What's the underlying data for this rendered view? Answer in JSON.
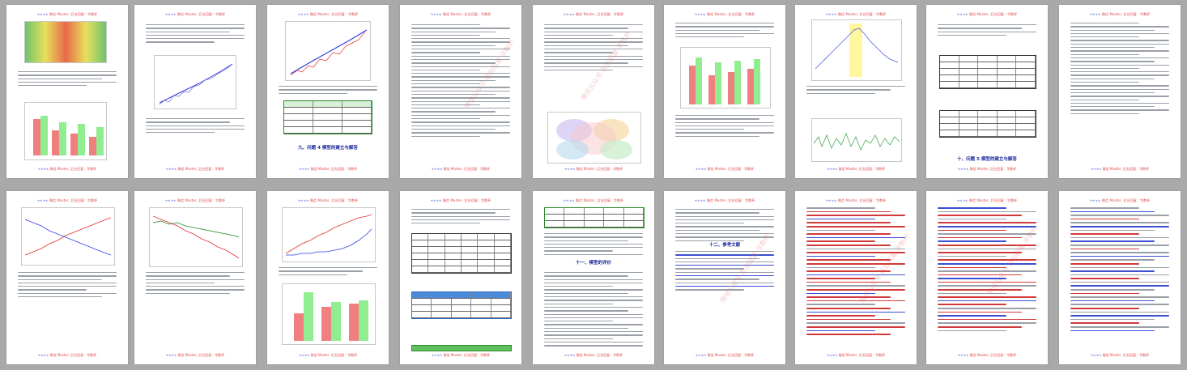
{
  "header": {
    "wave": "∿∿∿∿",
    "text": "微信 Master, 后台回复：华数杯"
  },
  "footer": {
    "wave": "∿∿∿∿",
    "text": "微信 Master, 后台回复：华数杯"
  },
  "watermark": {
    "text": "微信公众号  后台回复  华数杯"
  },
  "pages": {
    "p5": {
      "section_title": "九、问题 4 模型的建立与解答"
    },
    "p9": {
      "section_title": "十、问题 5 模型的建立与解答"
    },
    "p13": {
      "section_title": "十一、模型的评价"
    },
    "p14": {
      "section_title": "十二、参考文献"
    }
  },
  "colors": {
    "accent_blue": "#3b4fd1",
    "header_red": "#e04848",
    "bar_red": "#f08080",
    "bar_green": "#90ee90",
    "line_red": "#e03030",
    "line_blue": "#3040e0",
    "line_green": "#208020"
  }
}
